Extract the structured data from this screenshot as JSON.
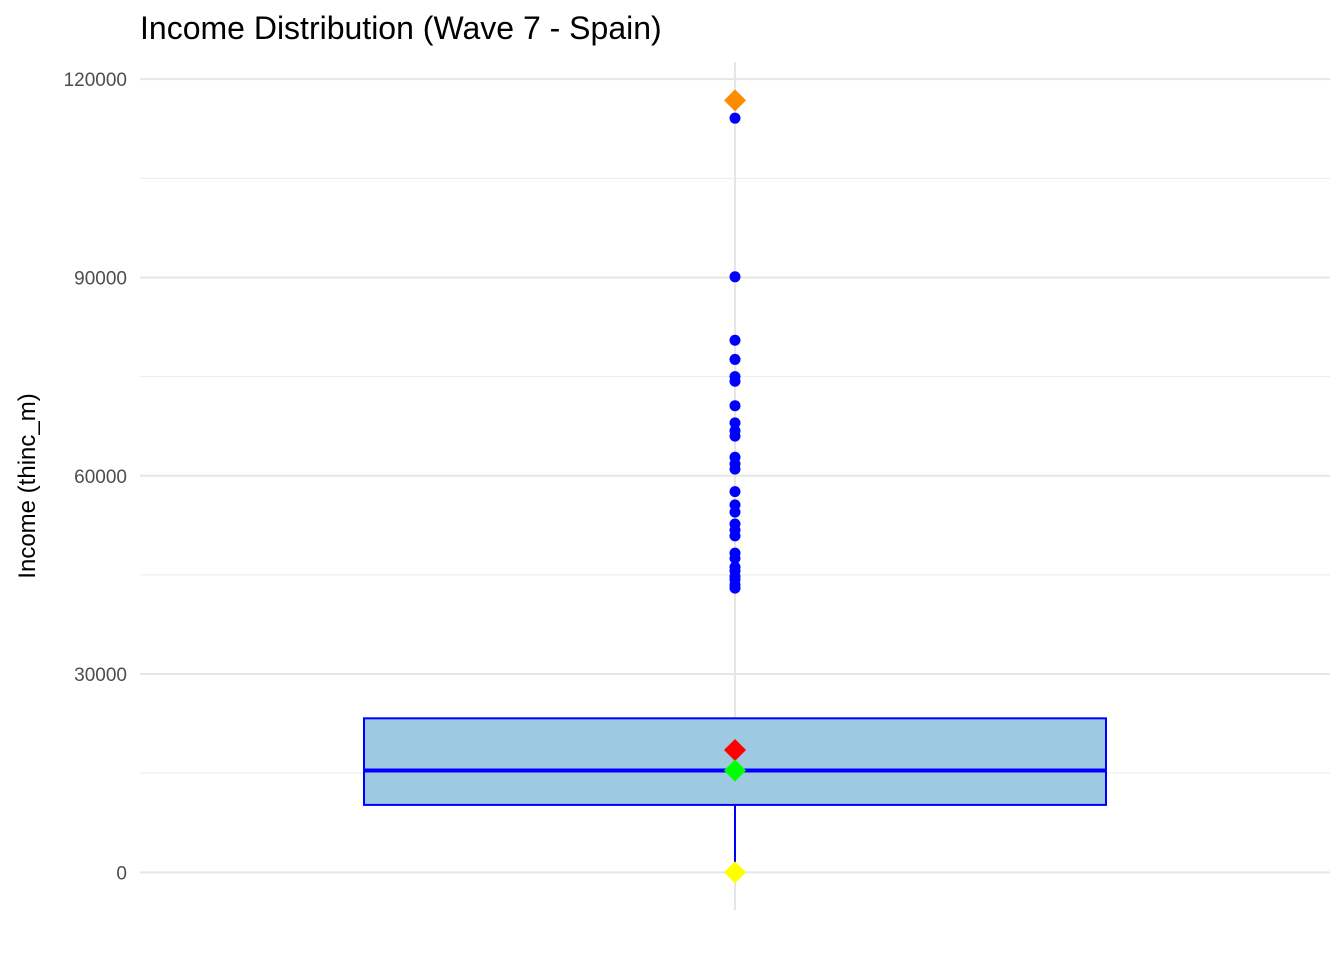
{
  "chart_data": {
    "type": "boxplot",
    "title": "Income Distribution (Wave 7 - Spain)",
    "xlabel": "",
    "ylabel": "Income (thinc_m)",
    "ylim": [
      -5700,
      122600
    ],
    "yticks": [
      0,
      30000,
      60000,
      90000,
      120000
    ],
    "grid": true,
    "box": {
      "q1": 10200,
      "median": 15400,
      "q3": 23300,
      "whisker_low": 0,
      "whisker_high": 23300,
      "fill": "#9ecae1",
      "stroke": "#0000ff"
    },
    "outliers": [
      114100,
      90100,
      80500,
      77600,
      75000,
      74300,
      70600,
      68000,
      66800,
      66000,
      62800,
      61800,
      61000,
      57600,
      55600,
      54500,
      52700,
      51800,
      50900,
      48300,
      47500,
      46200,
      45600,
      44800,
      44300,
      43500,
      43000
    ],
    "outlier_color": "#0000ff",
    "markers": [
      {
        "value": 116800,
        "color": "#ff8c00"
      },
      {
        "value": 18500,
        "color": "#ff0000"
      },
      {
        "value": 15400,
        "color": "#00ff00"
      },
      {
        "value": 0,
        "color": "#ffff00"
      }
    ]
  }
}
